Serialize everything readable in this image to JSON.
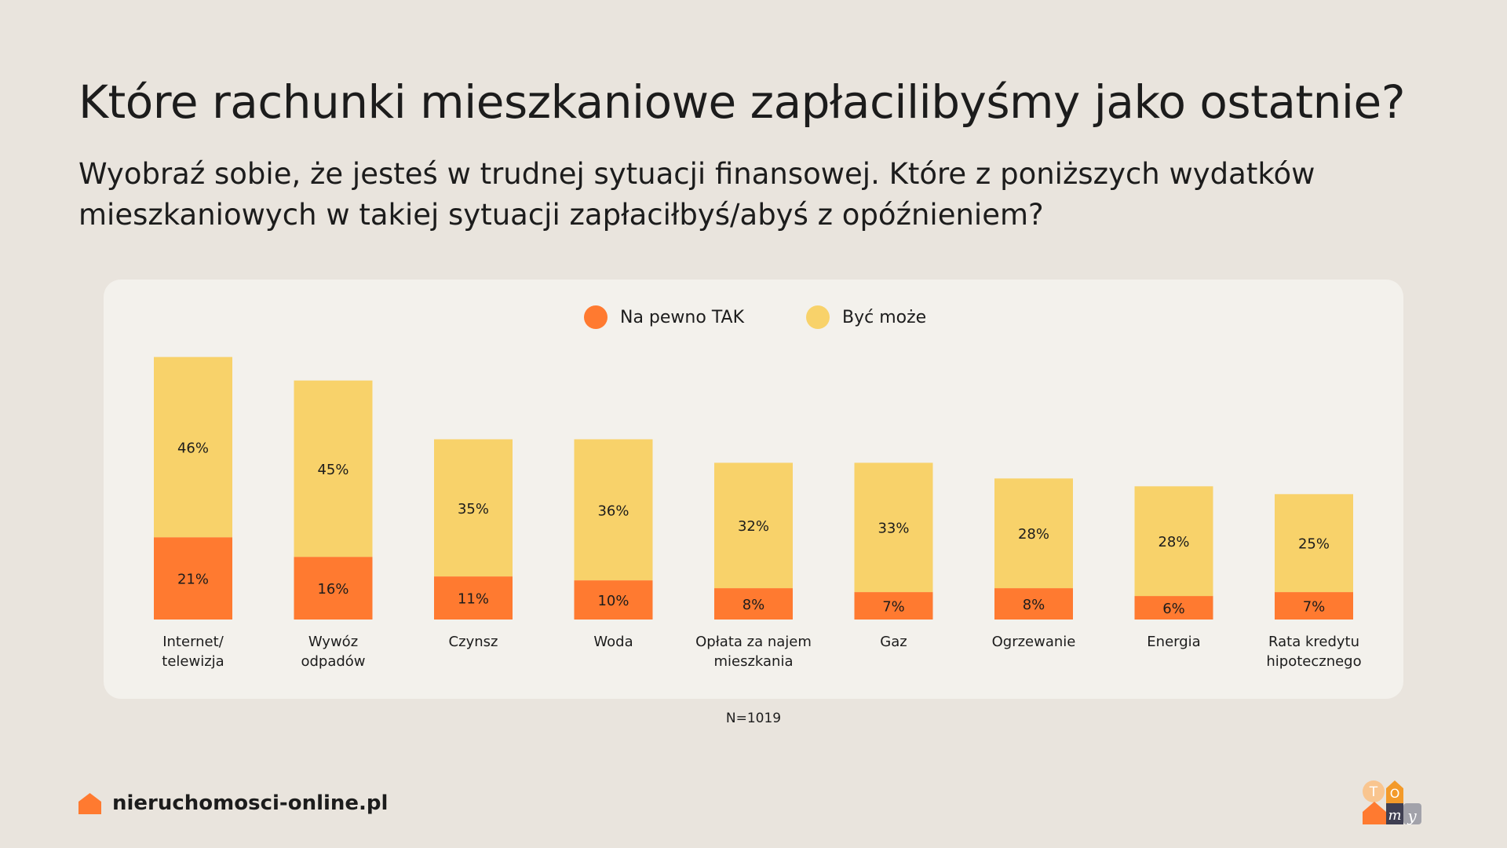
{
  "title": "Które rachunki mieszkaniowe zapłacilibyśmy jako ostatnie?",
  "subtitle": "Wyobraź sobie, że jesteś w trudnej sytuacji finansowej. Które z poniższych wydatków mieszkaniowych w takiej sytuacji zapłaciłbyś/abyś z opóźnieniem?",
  "note": "N=1019",
  "footer": {
    "site": "nieruchomosci-online.pl",
    "logo_text": "TOmy"
  },
  "chart_data": {
    "type": "bar",
    "stacked": true,
    "categories": [
      [
        "Internet/",
        "telewizja"
      ],
      [
        "Wywóz",
        "odpadów"
      ],
      [
        "Czynsz"
      ],
      [
        "Woda"
      ],
      [
        "Opłata za najem",
        "mieszkania"
      ],
      [
        "Gaz"
      ],
      [
        "Ogrzewanie"
      ],
      [
        "Energia"
      ],
      [
        "Rata kredytu",
        "hipotecznego"
      ]
    ],
    "series": [
      {
        "name": "Na pewno TAK",
        "color": "#ff7a30",
        "values": [
          21,
          16,
          11,
          10,
          8,
          7,
          8,
          6,
          7
        ]
      },
      {
        "name": "Być może",
        "color": "#f8d26a",
        "values": [
          46,
          45,
          35,
          36,
          32,
          33,
          28,
          28,
          25
        ]
      }
    ],
    "value_suffix": "%",
    "legend_position": "top-center",
    "grid": false,
    "ylim": [
      0,
      67
    ]
  }
}
